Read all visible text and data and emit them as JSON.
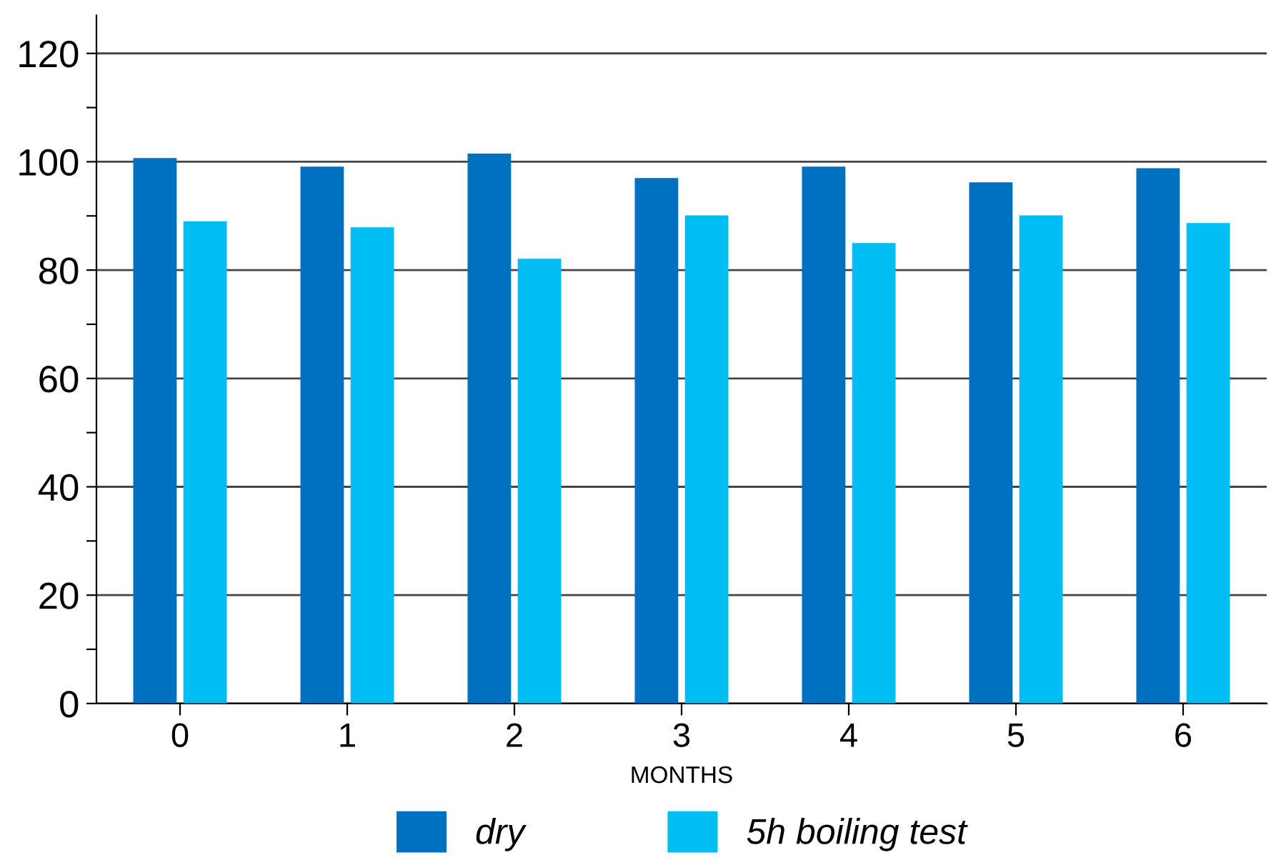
{
  "chart_data": {
    "type": "bar",
    "xlabel": "MONTHS",
    "categories": [
      "0",
      "1",
      "2",
      "3",
      "4",
      "5",
      "6"
    ],
    "series": [
      {
        "name": "dry",
        "color": "#0070c0",
        "values": [
          100.7,
          99.1,
          101.5,
          97.0,
          99.1,
          96.2,
          98.8
        ]
      },
      {
        "name": "5h boiling test",
        "color": "#00bef2",
        "values": [
          89.0,
          87.9,
          82.1,
          90.1,
          85.0,
          90.1,
          88.7
        ]
      }
    ],
    "ylim": [
      0,
      127
    ],
    "yticks": [
      0,
      {
        "value": 10,
        "label": null
      },
      20,
      {
        "value": 30,
        "label": null
      },
      40,
      {
        "value": 50,
        "label": null
      },
      60,
      {
        "value": 70,
        "label": null
      },
      80,
      {
        "value": 90,
        "label": null
      },
      100,
      {
        "value": 110,
        "label": null
      },
      120
    ],
    "grid": "y",
    "legend": "bottom"
  }
}
